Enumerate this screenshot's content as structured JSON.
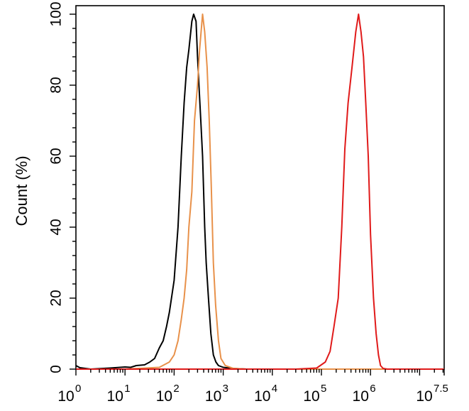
{
  "chart_data": {
    "type": "line",
    "title": "",
    "xlabel": "",
    "ylabel": "Count  (%)",
    "x_scale": "log",
    "xlim": [
      1,
      31622776.6
    ],
    "ylim": [
      0,
      100
    ],
    "grid": false,
    "x_ticks": [
      {
        "base": "10",
        "exp": "0",
        "value": 1
      },
      {
        "base": "10",
        "exp": "1",
        "value": 10
      },
      {
        "base": "10",
        "exp": "2",
        "value": 100
      },
      {
        "base": "10",
        "exp": "3",
        "value": 1000
      },
      {
        "base": "10",
        "exp": "4",
        "value": 10000
      },
      {
        "base": "10",
        "exp": "5",
        "value": 100000
      },
      {
        "base": "10",
        "exp": "6",
        "value": 1000000
      },
      {
        "base": "10",
        "exp": "7.5",
        "value": 31622776.6
      }
    ],
    "y_ticks": [
      "0",
      "20",
      "40",
      "60",
      "80",
      "100"
    ],
    "series": [
      {
        "color": "#000000",
        "points": [
          [
            1,
            1
          ],
          [
            1.2,
            0.4
          ],
          [
            2,
            0
          ],
          [
            5,
            0.3
          ],
          [
            10,
            0.6
          ],
          [
            13,
            0.5
          ],
          [
            17,
            1
          ],
          [
            25,
            1.2
          ],
          [
            32,
            2
          ],
          [
            40,
            3
          ],
          [
            50,
            6
          ],
          [
            60,
            8
          ],
          [
            70,
            12
          ],
          [
            80,
            16
          ],
          [
            100,
            25
          ],
          [
            120,
            40
          ],
          [
            140,
            60
          ],
          [
            160,
            75
          ],
          [
            180,
            85
          ],
          [
            200,
            90
          ],
          [
            230,
            98
          ],
          [
            250,
            100
          ],
          [
            280,
            98
          ],
          [
            300,
            88
          ],
          [
            320,
            80
          ],
          [
            350,
            70
          ],
          [
            380,
            60
          ],
          [
            420,
            40
          ],
          [
            450,
            30
          ],
          [
            500,
            20
          ],
          [
            560,
            10
          ],
          [
            630,
            4
          ],
          [
            710,
            2
          ],
          [
            800,
            1
          ],
          [
            1000,
            0.5
          ],
          [
            1500,
            0.2
          ],
          [
            3000,
            0
          ],
          [
            31622776.6,
            0
          ]
        ]
      },
      {
        "color": "#E8914A",
        "points": [
          [
            1,
            0
          ],
          [
            10,
            0
          ],
          [
            50,
            0.5
          ],
          [
            80,
            2
          ],
          [
            100,
            4
          ],
          [
            120,
            8
          ],
          [
            140,
            14
          ],
          [
            160,
            20
          ],
          [
            180,
            28
          ],
          [
            200,
            40
          ],
          [
            230,
            50
          ],
          [
            260,
            70
          ],
          [
            300,
            80
          ],
          [
            330,
            90
          ],
          [
            380,
            100
          ],
          [
            420,
            95
          ],
          [
            470,
            85
          ],
          [
            520,
            70
          ],
          [
            570,
            52
          ],
          [
            630,
            30
          ],
          [
            700,
            18
          ],
          [
            800,
            8
          ],
          [
            900,
            3
          ],
          [
            1100,
            1
          ],
          [
            1600,
            0.2
          ],
          [
            3000,
            0
          ],
          [
            31622776.6,
            0
          ]
        ]
      },
      {
        "color": "#E01A1A",
        "points": [
          [
            1,
            0
          ],
          [
            30000,
            0
          ],
          [
            80000,
            0.3
          ],
          [
            120000,
            2
          ],
          [
            150000,
            5
          ],
          [
            180000,
            12
          ],
          [
            220000,
            20
          ],
          [
            260000,
            40
          ],
          [
            300000,
            62
          ],
          [
            350000,
            75
          ],
          [
            420000,
            85
          ],
          [
            500000,
            95
          ],
          [
            570000,
            100
          ],
          [
            640000,
            95
          ],
          [
            720000,
            88
          ],
          [
            800000,
            75
          ],
          [
            900000,
            60
          ],
          [
            1000000,
            38
          ],
          [
            1150000,
            20
          ],
          [
            1300000,
            10
          ],
          [
            1450000,
            4
          ],
          [
            1600000,
            1
          ],
          [
            1800000,
            0.2
          ],
          [
            2200000,
            0
          ],
          [
            31622776.6,
            0
          ]
        ]
      }
    ]
  }
}
